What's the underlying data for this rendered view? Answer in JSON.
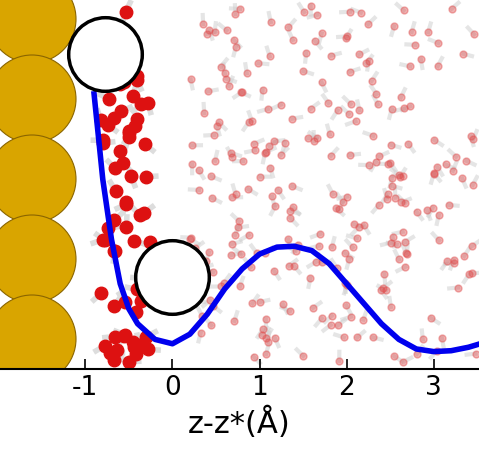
{
  "chart_data": {
    "type": "line",
    "x_label": "z-z*(Å)",
    "xlim": [
      -1.98,
      3.52
    ],
    "xticks": [
      {
        "value": -1,
        "label": "-1"
      },
      0,
      1,
      2,
      3
    ],
    "ylim": [
      0,
      4.25
    ],
    "tick_labels": "x",
    "grid": false,
    "series": [
      {
        "type": "line",
        "color": "#0000ee",
        "line_style": "solid",
        "x": [
          -0.9,
          -0.8,
          -0.7,
          -0.6,
          -0.5,
          -0.4,
          -0.2,
          0.0,
          0.2,
          0.4,
          0.6,
          0.8,
          1.0,
          1.2,
          1.4,
          1.6,
          1.8,
          2.0,
          2.2,
          2.4,
          2.6,
          2.8,
          3.0,
          3.2,
          3.4,
          3.5
        ],
        "values": [
          3.16,
          2.18,
          1.49,
          0.98,
          0.69,
          0.52,
          0.34,
          0.29,
          0.4,
          0.63,
          0.92,
          1.15,
          1.32,
          1.4,
          1.41,
          1.36,
          1.21,
          0.98,
          0.75,
          0.52,
          0.34,
          0.23,
          0.2,
          0.21,
          0.25,
          0.28
        ]
      },
      {
        "type": "scatter",
        "color": "#ffffff",
        "marker": "circle",
        "x": [
          -0.78,
          0.0
        ],
        "values": [
          3.62,
          1.06
        ]
      }
    ]
  }
}
